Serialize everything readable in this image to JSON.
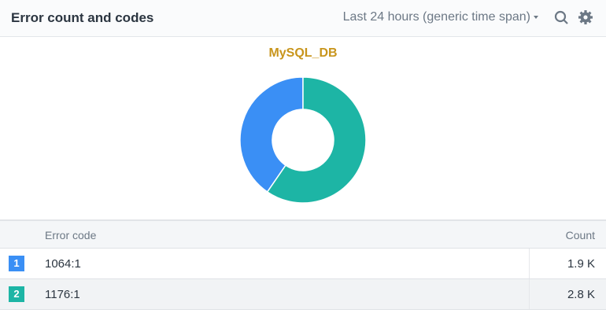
{
  "header": {
    "title": "Error count and codes",
    "time_range": "Last 24 hours (generic time span)"
  },
  "chart_data": {
    "type": "pie",
    "title": "MySQL_DB",
    "categories": [
      "1064:1",
      "1176:1"
    ],
    "values": [
      1900,
      2800
    ],
    "value_labels": [
      "1.9 K",
      "2.8 K"
    ],
    "colors": [
      "#3a8ff5",
      "#1db5a5"
    ],
    "donut": true
  },
  "table": {
    "columns": [
      "Error code",
      "Count"
    ],
    "ranks": [
      "1",
      "2"
    ]
  }
}
